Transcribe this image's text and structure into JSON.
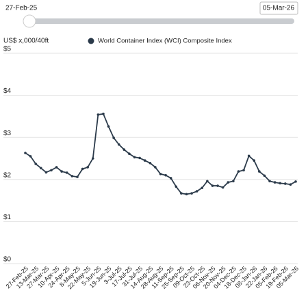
{
  "slider": {
    "start": "27-Feb-25",
    "end": "05-Mar-26"
  },
  "chart_data": {
    "type": "line",
    "y_label": "US$ x,000/40ft",
    "categories": [
      "27-Feb-25",
      null,
      "13-Mar-25",
      null,
      "27-Mar-25",
      null,
      "10-Apr-25",
      null,
      "24-Apr-25",
      null,
      "8-May-25",
      null,
      "22-May-25",
      null,
      "5-Jun-25",
      null,
      "19-Jun-25",
      null,
      "3-Jul-25",
      null,
      "17-Jul-25",
      null,
      "31-Jul-25",
      null,
      "14-Aug-25",
      null,
      "28-Aug-25",
      null,
      "11-Sep-25",
      null,
      "25-Sep-25",
      null,
      "09-Oct-25",
      null,
      "23-Oct-25",
      null,
      "06-Nov-25",
      null,
      "20-Nov-25",
      null,
      "04-Dec-25",
      null,
      "18-Dec-25",
      null,
      "08-Jan-26",
      null,
      "22-Jan-26",
      null,
      "05-Feb-26",
      null,
      "19-Feb-26",
      null,
      "05-Mar-26"
    ],
    "series": [
      {
        "name": "World Container Index (WCI) Composite Index",
        "color": "#2b3a4a",
        "values": [
          2.63,
          2.55,
          2.37,
          2.27,
          2.17,
          2.22,
          2.29,
          2.19,
          2.16,
          2.08,
          2.06,
          2.25,
          2.29,
          2.5,
          3.54,
          3.56,
          3.26,
          2.99,
          2.83,
          2.71,
          2.61,
          2.53,
          2.51,
          2.45,
          2.39,
          2.29,
          2.13,
          2.1,
          2.03,
          1.83,
          1.67,
          1.65,
          1.67,
          1.72,
          1.8,
          1.96,
          1.85,
          1.85,
          1.81,
          1.93,
          1.96,
          2.19,
          2.22,
          2.56,
          2.45,
          2.19,
          2.09,
          1.96,
          1.93,
          1.91,
          1.9,
          1.88,
          1.95
        ]
      }
    ],
    "ylim": [
      0,
      5
    ],
    "yticks": [
      {
        "value": 0,
        "label": "$0"
      },
      {
        "value": 1,
        "label": "$1"
      },
      {
        "value": 2,
        "label": "$2"
      },
      {
        "value": 3,
        "label": "$3"
      },
      {
        "value": 4,
        "label": "$4"
      },
      {
        "value": 5,
        "label": "$5"
      }
    ],
    "grid": true
  }
}
